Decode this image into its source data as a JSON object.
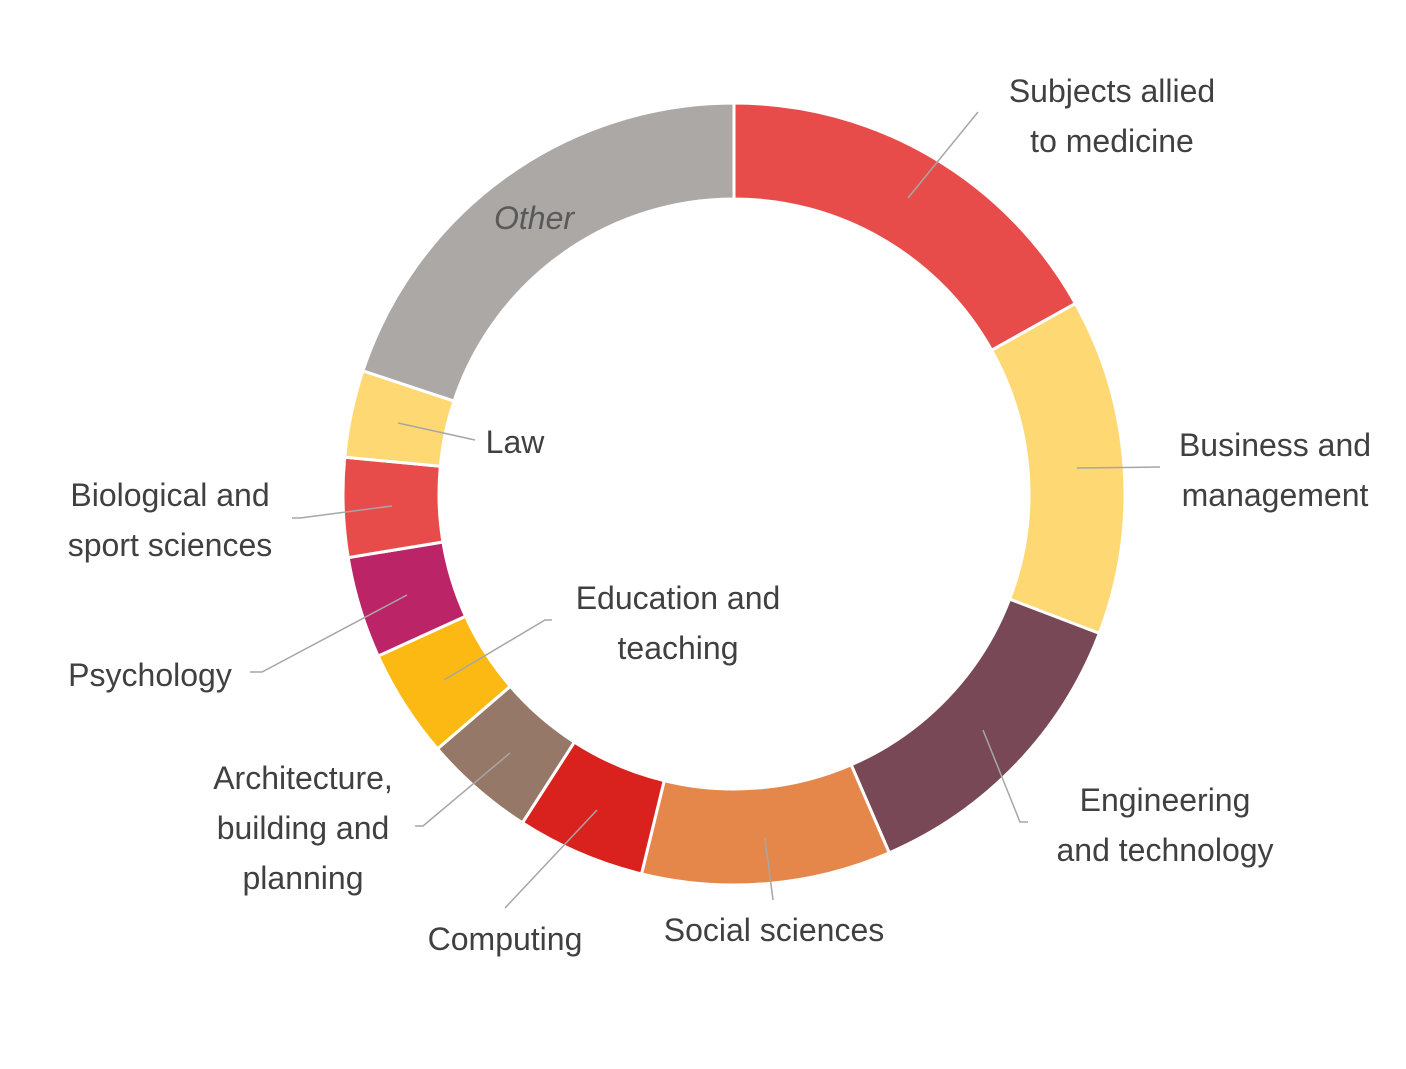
{
  "chart_data": {
    "type": "donut",
    "categories": [
      "Subjects allied to medicine",
      "Business and management",
      "Engineering and technology",
      "Social sciences",
      "Computing",
      "Architecture, building and planning",
      "Education and teaching",
      "Psychology",
      "Biological and sport sciences",
      "Law",
      "Other"
    ],
    "values": [
      16.9,
      13.9,
      12.7,
      10.3,
      5.3,
      4.6,
      4.5,
      4.2,
      4.1,
      3.6,
      19.9
    ],
    "colors": [
      "#e84c4a",
      "#fed872",
      "#784857",
      "#e5874b",
      "#d9211e",
      "#967868",
      "#fdb913",
      "#bc2468",
      "#e84c4a",
      "#fed872",
      "#aca8a6"
    ]
  }
}
